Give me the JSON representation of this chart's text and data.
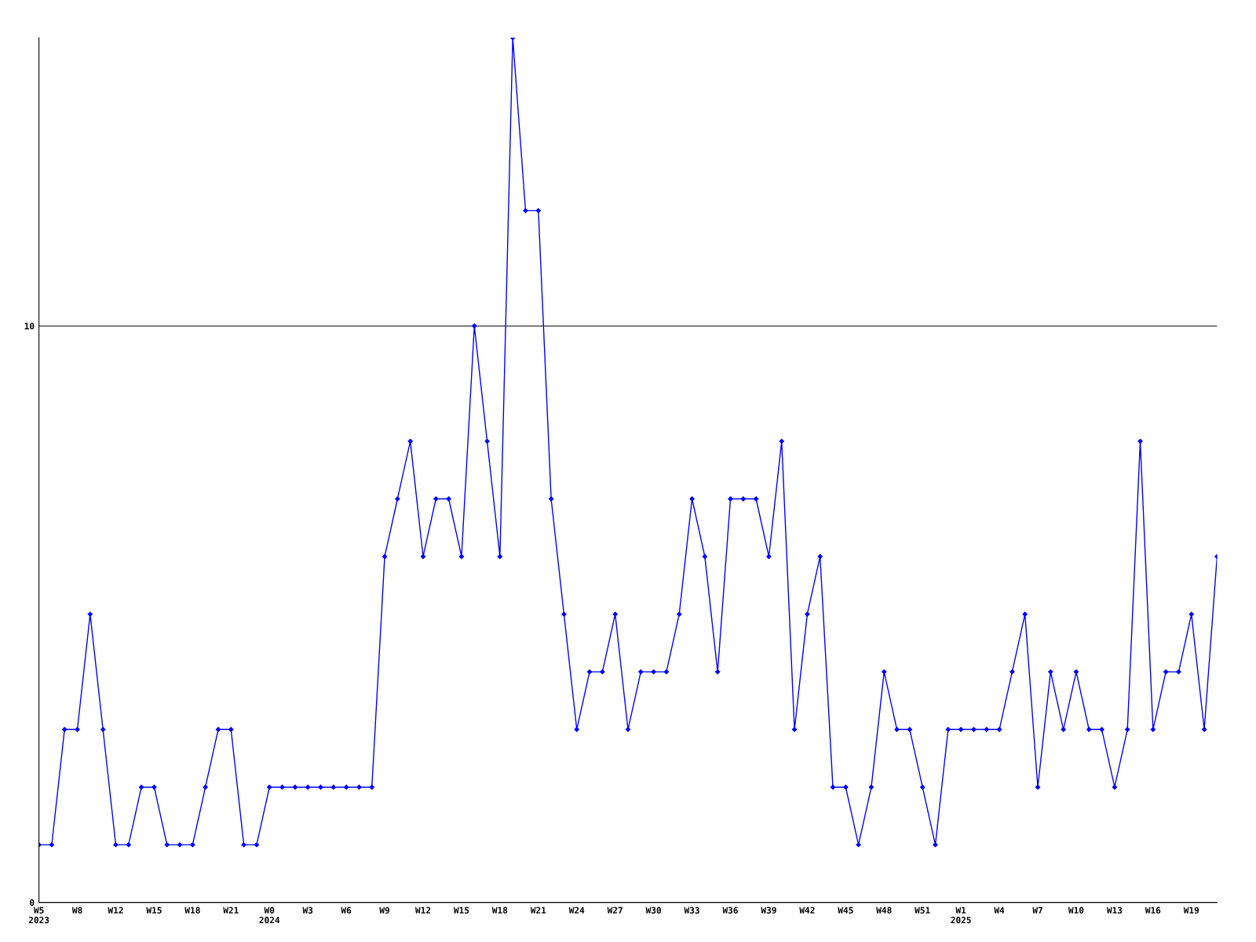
{
  "chart_data": {
    "type": "line",
    "categories": [
      "W5\n2023",
      null,
      null,
      "W8",
      null,
      null,
      "W12",
      null,
      null,
      "W15",
      null,
      null,
      "W18",
      null,
      null,
      "W21",
      null,
      null,
      "W0\n2024",
      null,
      null,
      "W3",
      null,
      null,
      "W6",
      null,
      null,
      "W9",
      null,
      null,
      "W12",
      null,
      null,
      "W15",
      null,
      null,
      "W18",
      null,
      null,
      "W21",
      null,
      null,
      "W24",
      null,
      null,
      "W27",
      null,
      null,
      "W30",
      null,
      null,
      "W33",
      null,
      null,
      "W36",
      null,
      null,
      "W39",
      null,
      null,
      "W42",
      null,
      null,
      "W45",
      null,
      null,
      "W48",
      null,
      null,
      "W51",
      null,
      null,
      "W1\n2025",
      null,
      null,
      "W4",
      null,
      null,
      "W7",
      null,
      null,
      "W10",
      null,
      null,
      "W13",
      null,
      null,
      "W16",
      null,
      null,
      "W19",
      null,
      null
    ],
    "series": [
      {
        "color": "#0000ff",
        "values": [
          1,
          1,
          3,
          3,
          5,
          3,
          1,
          1,
          2,
          2,
          1,
          1,
          1,
          2,
          3,
          3,
          1,
          1,
          2,
          2,
          2,
          2,
          2,
          2,
          2,
          2,
          2,
          6,
          7,
          8,
          6,
          7,
          7,
          6,
          10,
          8,
          6,
          15,
          12,
          12,
          7,
          5,
          3,
          4,
          4,
          5,
          3,
          4,
          4,
          4,
          5,
          7,
          6,
          4,
          7,
          7,
          7,
          6,
          8,
          3,
          5,
          6,
          2,
          2,
          1,
          2,
          4,
          3,
          3,
          2,
          1,
          3,
          3,
          3,
          3,
          3,
          4,
          5,
          2,
          4,
          3,
          4,
          3,
          3,
          2,
          3,
          8,
          3,
          4,
          4,
          5,
          3,
          6
        ]
      }
    ],
    "ylim": [
      0,
      15
    ],
    "yticks": [
      0,
      10
    ],
    "grid": "y",
    "marker": "diamond",
    "line_style": "solid"
  }
}
